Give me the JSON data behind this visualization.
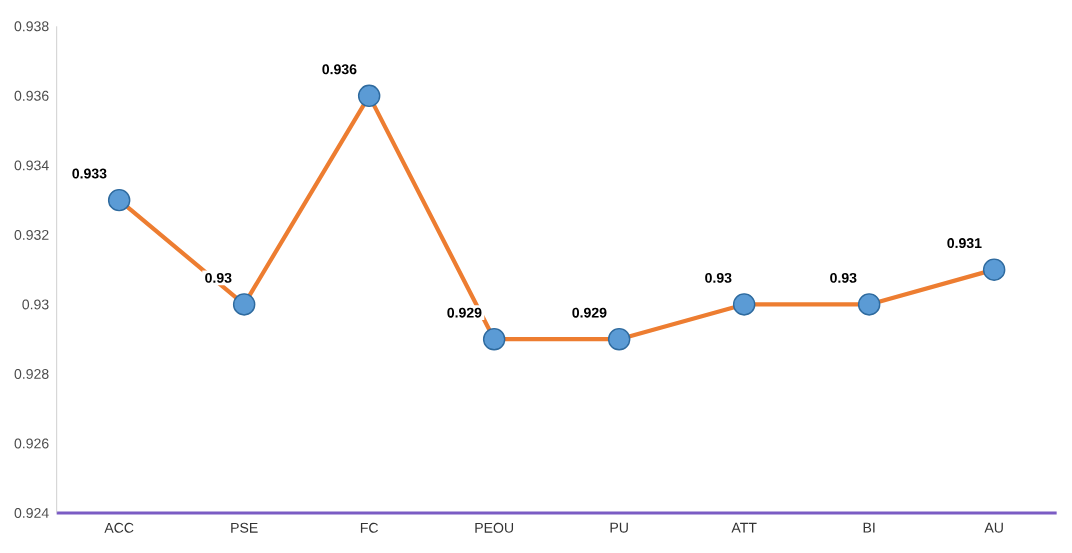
{
  "chart_data": {
    "type": "line",
    "categories": [
      "ACC",
      "PSE",
      "FC",
      "PEOU",
      "PU",
      "ATT",
      "BI",
      "AU"
    ],
    "series": [
      {
        "color": "#ed7d31",
        "values": [
          0.933,
          0.93,
          0.936,
          0.929,
          0.929,
          0.93,
          0.93,
          0.931
        ]
      }
    ],
    "ylim": [
      0.924,
      0.938
    ],
    "yticks": [
      0.924,
      0.926,
      0.928,
      0.93,
      0.932,
      0.934,
      0.936,
      0.938
    ],
    "marker": "circle",
    "line_style": "solid",
    "data_labels": true,
    "grid": false,
    "legend": false
  }
}
